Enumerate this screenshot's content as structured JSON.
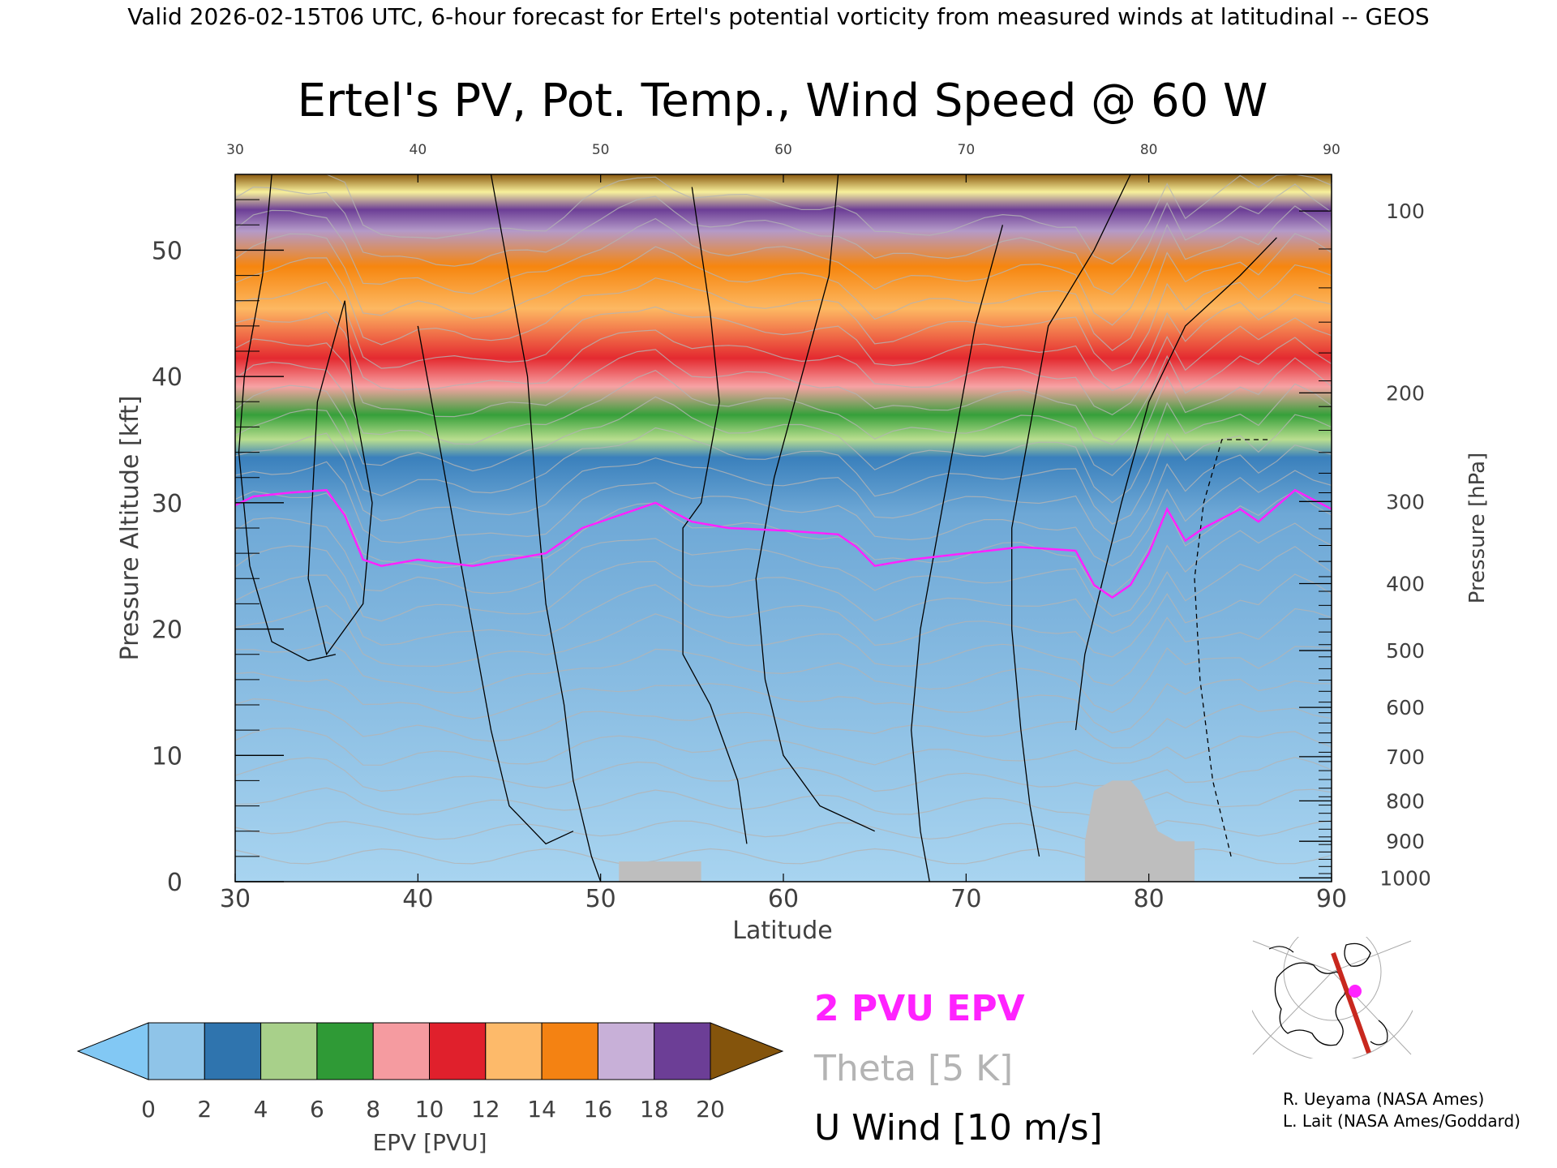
{
  "header": {
    "top_line": "Valid 2026-02-15T06 UTC, 6-hour forecast for Ertel's potential vorticity from measured winds at latitudinal -- GEOS"
  },
  "chart_data": {
    "type": "heatmap",
    "title": "Ertel's PV, Pot. Temp., Wind Speed @ 60 W",
    "xlabel": "Latitude",
    "ylabel": "Pressure Altitude [kft]",
    "y2label": "Pressure [hPa]",
    "xlim": [
      30,
      90
    ],
    "ylim": [
      0,
      56
    ],
    "x_ticks": [
      30,
      40,
      50,
      60,
      70,
      80,
      90
    ],
    "x_tick_labels": [
      "30",
      "40",
      "50",
      "60",
      "70",
      "80",
      "90"
    ],
    "y_ticks": [
      0,
      10,
      20,
      30,
      40,
      50
    ],
    "y_tick_labels": [
      "0",
      "10",
      "20",
      "30",
      "40",
      "50"
    ],
    "pressure_ticks": [
      {
        "hpa": 100,
        "label": "100",
        "kft": 53.1
      },
      {
        "hpa": 200,
        "label": "200",
        "kft": 38.7
      },
      {
        "hpa": 300,
        "label": "300",
        "kft": 30.1
      },
      {
        "hpa": 400,
        "label": "400",
        "kft": 23.6
      },
      {
        "hpa": 500,
        "label": "500",
        "kft": 18.3
      },
      {
        "hpa": 600,
        "label": "600",
        "kft": 13.8
      },
      {
        "hpa": 700,
        "label": "700",
        "kft": 9.9
      },
      {
        "hpa": 800,
        "label": "800",
        "kft": 6.4
      },
      {
        "hpa": 900,
        "label": "900",
        "kft": 3.2
      },
      {
        "hpa": 1000,
        "label": "1000",
        "kft": 0.3
      }
    ],
    "tropopause_2pvu_kft": [
      [
        30,
        29.8
      ],
      [
        31,
        30.5
      ],
      [
        33,
        30.8
      ],
      [
        35,
        31
      ],
      [
        36,
        29
      ],
      [
        37,
        25.5
      ],
      [
        38,
        25
      ],
      [
        40,
        25.5
      ],
      [
        43,
        25
      ],
      [
        45,
        25.5
      ],
      [
        47,
        26
      ],
      [
        49,
        28
      ],
      [
        51,
        29
      ],
      [
        53,
        30
      ],
      [
        55,
        28.5
      ],
      [
        57,
        28
      ],
      [
        60,
        27.8
      ],
      [
        63,
        27.5
      ],
      [
        64,
        26.5
      ],
      [
        65,
        25
      ],
      [
        67,
        25.5
      ],
      [
        70,
        26
      ],
      [
        73,
        26.5
      ],
      [
        76,
        26.2
      ],
      [
        77,
        23.5
      ],
      [
        78,
        22.5
      ],
      [
        79,
        23.5
      ],
      [
        80,
        26
      ],
      [
        81,
        29.5
      ],
      [
        82,
        27
      ],
      [
        83,
        28
      ],
      [
        85,
        29.5
      ],
      [
        86,
        28.5
      ],
      [
        88,
        31
      ],
      [
        90,
        29.5
      ]
    ],
    "topography_kft": [
      [
        51,
        1.6
      ],
      [
        55.5,
        1.6
      ],
      [
        55.5,
        0
      ],
      [
        76.5,
        0
      ],
      [
        76.5,
        3.2
      ],
      [
        77,
        7.2
      ],
      [
        78,
        8
      ],
      [
        79,
        8
      ],
      [
        79.5,
        7.2
      ],
      [
        80,
        5.6
      ],
      [
        80.5,
        4
      ],
      [
        81.5,
        3.2
      ],
      [
        82.5,
        3.2
      ],
      [
        82.5,
        0
      ]
    ],
    "colorbar": {
      "label": "EPV [PVU]",
      "min": 0,
      "max": 20,
      "tick_labels": [
        "0",
        "2",
        "4",
        "6",
        "8",
        "10",
        "12",
        "14",
        "16",
        "18",
        "20"
      ],
      "colors": [
        "#8fc4e8",
        "#2f74ae",
        "#a8d08a",
        "#2f9a36",
        "#f59ba0",
        "#e0202c",
        "#fdba6a",
        "#f48212",
        "#c8b0d8",
        "#6c3e96",
        "#f6f0a0"
      ],
      "under_color": "#82c8f4",
      "over_color": "#84540c"
    },
    "legend": [
      {
        "label": "2 PVU EPV",
        "color": "#ff22ff"
      },
      {
        "label": "Theta [5 K]",
        "color": "#b4b4b4"
      },
      {
        "label": "U Wind [10 m/s]",
        "color": "#000000"
      }
    ]
  },
  "credits": {
    "line1": "R. Ueyama (NASA Ames)",
    "line2": "L. Lait (NASA Ames/Goddard)"
  },
  "colors": {
    "tropopause": "#ff22ff",
    "theta": "#b4b4b4",
    "topography": "#bebebe",
    "map_track": "#c8281e",
    "map_marker": "#ff22ff"
  }
}
